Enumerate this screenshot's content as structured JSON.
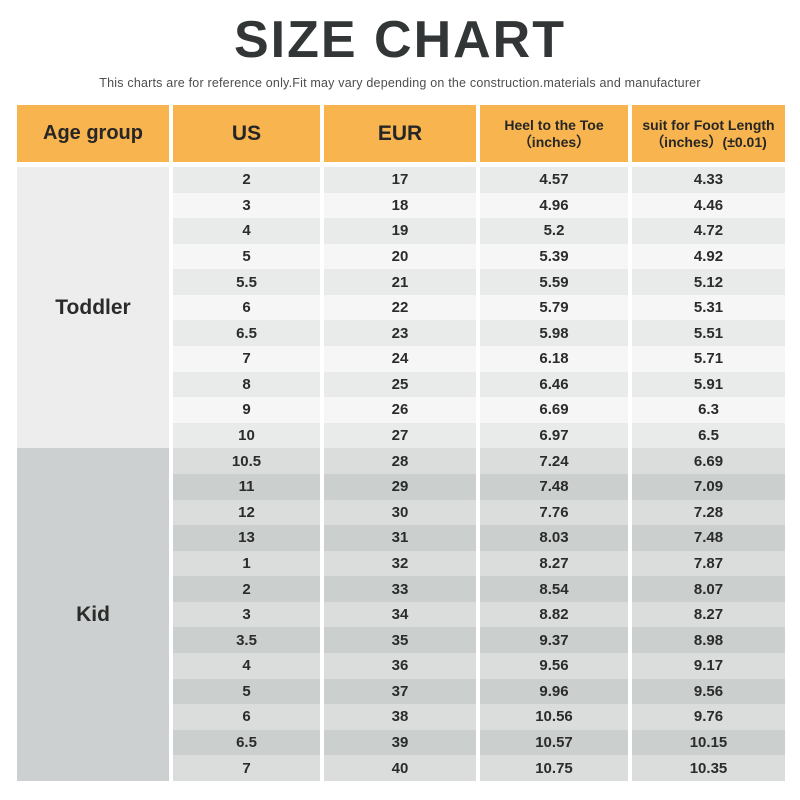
{
  "chart_data": {
    "type": "table",
    "title": "SIZE CHART",
    "subtitle": "This charts are for reference only.Fit may vary depending on the construction.materials and manufacturer",
    "columns": [
      "Age group",
      "US",
      "EUR",
      "Heel to the Toe （inches）",
      "suit for Foot Length （inches）(±0.01)"
    ],
    "header": {
      "age_group": "Age group",
      "us": "US",
      "eur": "EUR",
      "heel_line1": "Heel to the Toe",
      "heel_line2": "（inches）",
      "foot_line1": "suit for Foot Length",
      "foot_line2": "（inches）(±0.01)"
    },
    "sections": [
      {
        "age_group": "Toddler",
        "rows": [
          [
            "2",
            "17",
            "4.57",
            "4.33"
          ],
          [
            "3",
            "18",
            "4.96",
            "4.46"
          ],
          [
            "4",
            "19",
            "5.2",
            "4.72"
          ],
          [
            "5",
            "20",
            "5.39",
            "4.92"
          ],
          [
            "5.5",
            "21",
            "5.59",
            "5.12"
          ],
          [
            "6",
            "22",
            "5.79",
            "5.31"
          ],
          [
            "6.5",
            "23",
            "5.98",
            "5.51"
          ],
          [
            "7",
            "24",
            "6.18",
            "5.71"
          ],
          [
            "8",
            "25",
            "6.46",
            "5.91"
          ],
          [
            "9",
            "26",
            "6.69",
            "6.3"
          ],
          [
            "10",
            "27",
            "6.97",
            "6.5"
          ]
        ]
      },
      {
        "age_group": "Kid",
        "rows": [
          [
            "10.5",
            "28",
            "7.24",
            "6.69"
          ],
          [
            "11",
            "29",
            "7.48",
            "7.09"
          ],
          [
            "12",
            "30",
            "7.76",
            "7.28"
          ],
          [
            "13",
            "31",
            "8.03",
            "7.48"
          ],
          [
            "1",
            "32",
            "8.27",
            "7.87"
          ],
          [
            "2",
            "33",
            "8.54",
            "8.07"
          ],
          [
            "3",
            "34",
            "8.82",
            "8.27"
          ],
          [
            "3.5",
            "35",
            "9.37",
            "8.98"
          ],
          [
            "4",
            "36",
            "9.56",
            "9.17"
          ],
          [
            "5",
            "37",
            "9.96",
            "9.56"
          ],
          [
            "6",
            "38",
            "10.56",
            "9.76"
          ],
          [
            "6.5",
            "39",
            "10.57",
            "10.15"
          ],
          [
            "7",
            "40",
            "10.75",
            "10.35"
          ]
        ]
      }
    ],
    "colors": {
      "header_bg": "#f7b44f",
      "toddler_cell_bg": "#ededed",
      "kid_cell_bg": "#cdd0d0",
      "toddler_row_odd": "#e9eaea",
      "toddler_row_even": "#f5f6f5",
      "kid_row_odd": "#cbcfce",
      "kid_row_even": "#dbdddc",
      "text": "#2b2b2b",
      "title_text": "#323637"
    }
  }
}
